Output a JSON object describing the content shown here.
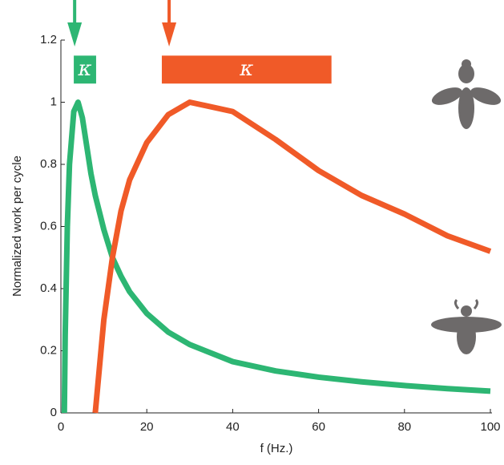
{
  "chart_data": {
    "type": "line",
    "x_label": "f (Hz.)",
    "y_label": "Normalized work per cycle",
    "x": [
      0.8,
      1,
      1.5,
      2,
      3,
      4,
      5,
      6,
      7,
      8,
      10,
      12,
      14,
      16,
      20,
      25,
      30,
      40,
      50,
      60,
      70,
      80,
      90,
      100
    ],
    "series": [
      {
        "color": "#2db673",
        "values": [
          0,
          0.25,
          0.6,
          0.8,
          0.97,
          1.0,
          0.95,
          0.86,
          0.77,
          0.7,
          0.59,
          0.5,
          0.44,
          0.39,
          0.32,
          0.26,
          0.22,
          0.165,
          0.135,
          0.115,
          0.1,
          0.088,
          0.078,
          0.07
        ]
      },
      {
        "color": "#f05a28",
        "values": [
          null,
          null,
          null,
          null,
          null,
          null,
          null,
          null,
          null,
          0,
          0.3,
          0.5,
          0.65,
          0.75,
          0.87,
          0.96,
          1.0,
          0.97,
          0.88,
          0.78,
          0.7,
          0.64,
          0.57,
          0.52
        ]
      }
    ],
    "xlim": [
      0,
      100
    ],
    "ylim": [
      0,
      1.2
    ],
    "xticks": [
      0,
      20,
      40,
      60,
      80,
      100
    ],
    "yticks": [
      0,
      0.2,
      0.4,
      0.6,
      0.8,
      1,
      1.2
    ],
    "annotations": [
      {
        "text": "κ",
        "x": [
          3,
          8.2
        ],
        "y": [
          1.06,
          1.15
        ],
        "arrow_x": 3.2,
        "color": "#2db673"
      },
      {
        "text": "κ",
        "x": [
          23.5,
          63
        ],
        "y": [
          1.06,
          1.15
        ],
        "arrow_x": 25.2,
        "color": "#f05a28"
      }
    ]
  }
}
